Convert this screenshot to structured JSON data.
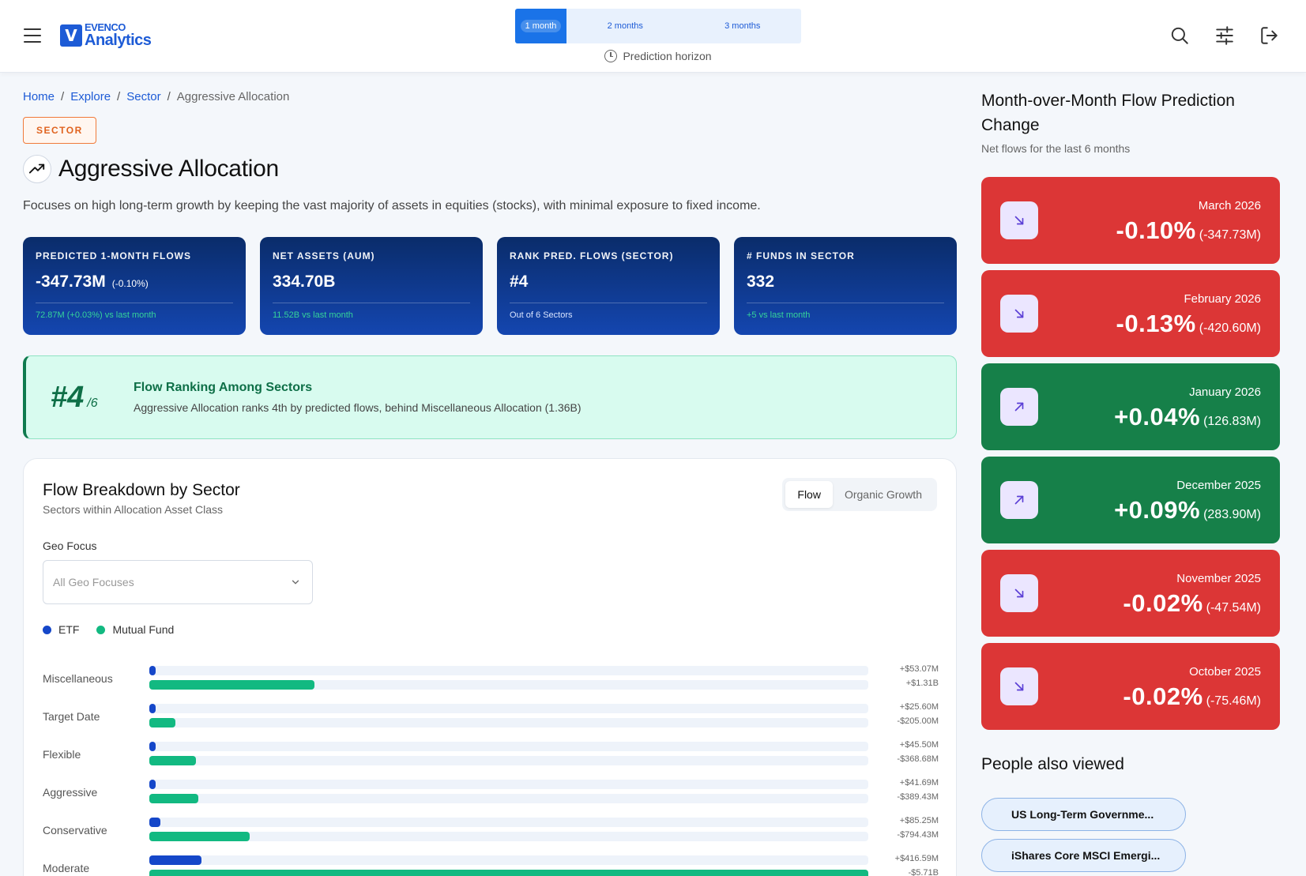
{
  "header": {
    "logo_top": "EVENCO",
    "logo_bottom": "Analytics",
    "logo_mark": "V",
    "horizon_options": [
      "1 month",
      "2 months",
      "3 months"
    ],
    "horizon_selected": "1 month",
    "horizon_label": "Prediction horizon",
    "icons": [
      "menu-icon",
      "search-icon",
      "sliders-icon",
      "logout-icon"
    ]
  },
  "breadcrumb": [
    "Home",
    "Explore",
    "Sector",
    "Aggressive Allocation"
  ],
  "badge": "SECTOR",
  "title": "Aggressive Allocation",
  "description": "Focuses on high long-term growth by keeping the vast majority of assets in equities (stocks), with minimal exposure to fixed income.",
  "kpis": [
    {
      "label": "PREDICTED 1-MONTH FLOWS",
      "value": "-347.73M",
      "sub": "(-0.10%)",
      "foot": "72.87M (+0.03%) vs last month",
      "foot_style": "positive"
    },
    {
      "label": "NET ASSETS (AUM)",
      "value": "334.70B",
      "sub": "",
      "foot": "11.52B vs last month",
      "foot_style": "positive"
    },
    {
      "label": "RANK PRED. FLOWS (SECTOR)",
      "value": "#4",
      "sub": "",
      "foot": "Out of 6 Sectors",
      "foot_style": "neutral"
    },
    {
      "label": "# FUNDS IN SECTOR",
      "value": "332",
      "sub": "",
      "foot": "+5 vs last month",
      "foot_style": "positive"
    }
  ],
  "ranking": {
    "rank": "#4",
    "of": "/6",
    "title": "Flow Ranking Among Sectors",
    "desc": "Aggressive Allocation ranks 4th by predicted flows, behind Miscellaneous Allocation (1.36B)"
  },
  "breakdown": {
    "title": "Flow Breakdown by Sector",
    "subtitle": "Sectors within Allocation Asset Class",
    "toggle": [
      "Flow",
      "Organic Growth"
    ],
    "toggle_selected": "Flow",
    "geo_label": "Geo Focus",
    "geo_placeholder": "All Geo Focuses",
    "legend": [
      {
        "name": "ETF",
        "color": "#1547c9"
      },
      {
        "name": "Mutual Fund",
        "color": "#12b981"
      }
    ]
  },
  "chart_data": {
    "type": "bar",
    "orientation": "horizontal",
    "categories": [
      "Miscellaneous",
      "Target Date",
      "Flexible",
      "Aggressive",
      "Conservative",
      "Moderate"
    ],
    "series": [
      {
        "name": "ETF",
        "values": [
          53.07,
          25.6,
          45.5,
          41.69,
          85.25,
          416.59
        ],
        "labels": [
          "+$53.07M",
          "+$25.60M",
          "+$45.50M",
          "+$41.69M",
          "+$85.25M",
          "+$416.59M"
        ],
        "color": "#1547c9"
      },
      {
        "name": "Mutual Fund",
        "values": [
          1310,
          -205.0,
          -368.68,
          -389.43,
          -794.43,
          -5710
        ],
        "labels": [
          "+$1.31B",
          "-$205.00M",
          "-$368.68M",
          "-$389.43M",
          "-$794.43M",
          "-$5.71B"
        ],
        "color": "#12b981"
      }
    ],
    "bar_max_abs": 5710
  },
  "side": {
    "title": "Month-over-Month Flow Prediction Change",
    "subtitle": "Net flows for the last 6 months",
    "months": [
      {
        "month": "March 2026",
        "pct": "-0.10%",
        "abs": "(-347.73M)",
        "direction": "down"
      },
      {
        "month": "February 2026",
        "pct": "-0.13%",
        "abs": "(-420.60M)",
        "direction": "down"
      },
      {
        "month": "January 2026",
        "pct": "+0.04%",
        "abs": "(126.83M)",
        "direction": "up"
      },
      {
        "month": "December 2025",
        "pct": "+0.09%",
        "abs": "(283.90M)",
        "direction": "up"
      },
      {
        "month": "November 2025",
        "pct": "-0.02%",
        "abs": "(-47.54M)",
        "direction": "down"
      },
      {
        "month": "October 2025",
        "pct": "-0.02%",
        "abs": "(-75.46M)",
        "direction": "down"
      }
    ],
    "people_title": "People also viewed",
    "people": [
      "US Long-Term Governme...",
      "iShares Core MSCI Emergi..."
    ]
  }
}
